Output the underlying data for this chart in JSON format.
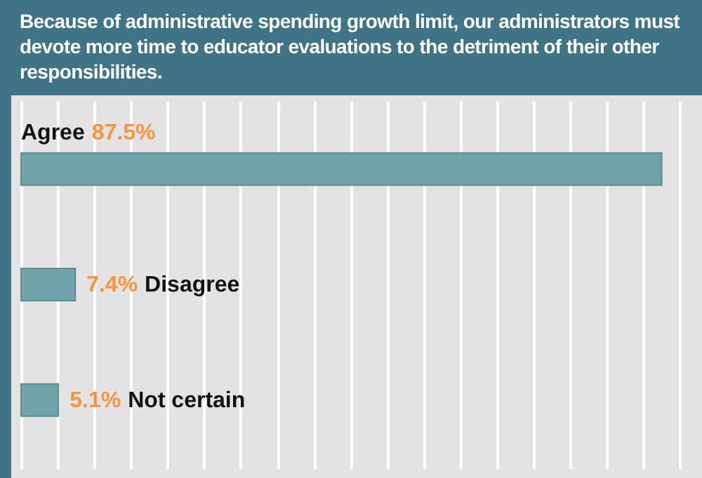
{
  "chart_data": {
    "type": "bar",
    "orientation": "horizontal",
    "title": "Because of administrative spending growth limit, our administrators must devote more time to educator evaluations to the detriment of their other responsibilities.",
    "categories": [
      "Agree",
      "Disagree",
      "Not certain"
    ],
    "values": [
      87.5,
      7.4,
      5.1
    ],
    "value_labels": [
      "87.5%",
      "7.4%",
      "5.1%"
    ],
    "color": "#6fa3aa",
    "grid": "x"
  }
}
